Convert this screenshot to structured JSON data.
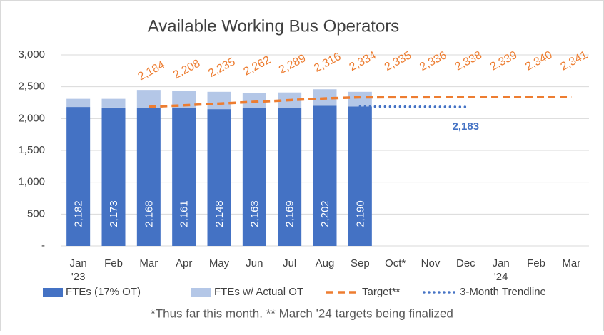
{
  "chart_data": {
    "type": "bar",
    "title": "Available Working Bus Operators",
    "categories": [
      "Jan '23",
      "Feb",
      "Mar",
      "Apr",
      "May",
      "Jun",
      "Jul",
      "Aug",
      "Sep",
      "Oct*",
      "Nov",
      "Dec",
      "Jan '24",
      "Feb",
      "Mar"
    ],
    "series": [
      {
        "name": "FTEs (17% OT)",
        "type": "bar",
        "color": "#4472c4",
        "values": [
          2182,
          2173,
          2168,
          2161,
          2148,
          2163,
          2169,
          2202,
          2190,
          null,
          null,
          null,
          null,
          null,
          null
        ],
        "value_labels": [
          "2,182",
          "2,173",
          "2,168",
          "2,161",
          "2,148",
          "2,163",
          "2,169",
          "2,202",
          "2,190",
          null,
          null,
          null,
          null,
          null,
          null
        ]
      },
      {
        "name": "FTEs w/ Actual OT",
        "type": "bar",
        "color": "#b4c7e7",
        "values": [
          128,
          137,
          282,
          279,
          272,
          237,
          241,
          258,
          230,
          null,
          null,
          null,
          null,
          null,
          null
        ]
      },
      {
        "name": "Target**",
        "type": "line",
        "dash": "dashed",
        "color": "#ed7d31",
        "values": [
          null,
          null,
          2184,
          2208,
          2235,
          2262,
          2289,
          2316,
          2334,
          2335,
          2336,
          2338,
          2339,
          2340,
          2341
        ],
        "value_labels": [
          null,
          null,
          "2,184",
          "2,208",
          "2,235",
          "2,262",
          "2,289",
          "2,316",
          "2,334",
          "2,335",
          "2,336",
          "2,338",
          "2,339",
          "2,340",
          "2,341"
        ]
      },
      {
        "name": "3-Month Trendline",
        "type": "line",
        "dash": "dotted",
        "color": "#4472c4",
        "values": [
          null,
          null,
          null,
          null,
          null,
          null,
          null,
          null,
          2190,
          2187,
          2185,
          2183,
          null,
          null,
          null
        ],
        "value_labels": [
          null,
          null,
          null,
          null,
          null,
          null,
          null,
          null,
          null,
          null,
          null,
          "2,183",
          null,
          null,
          null
        ]
      }
    ],
    "ylim": [
      0,
      3000
    ],
    "yticks": [
      {
        "value": 0,
        "label": "-"
      },
      500,
      {
        "value": 1000,
        "label": "1,000"
      },
      {
        "value": 1500,
        "label": "1,500"
      },
      {
        "value": 2000,
        "label": "2,000"
      },
      {
        "value": 2500,
        "label": "2,500"
      },
      {
        "value": 3000,
        "label": "3,000"
      }
    ],
    "grid": true,
    "legend": "bottom",
    "footnote": "*Thus far this month. ** March '24 targets being finalized"
  }
}
